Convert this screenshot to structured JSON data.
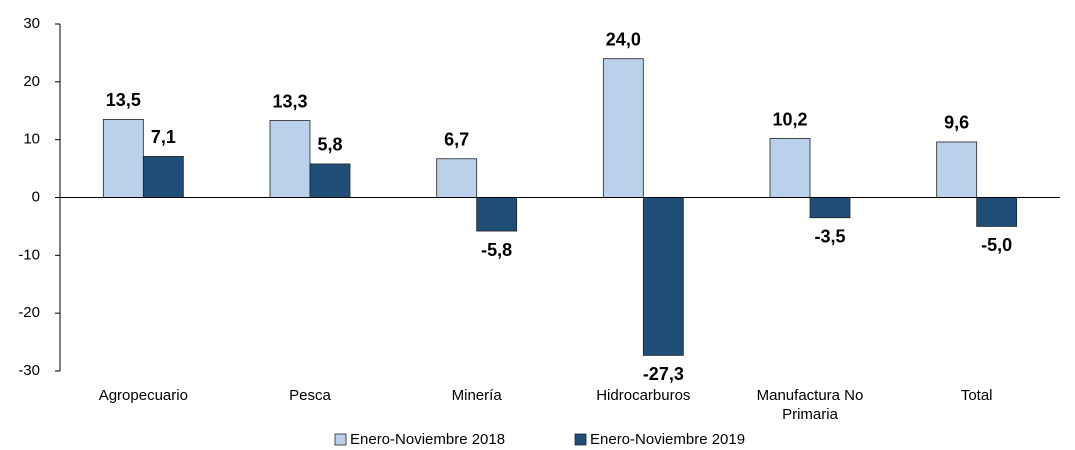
{
  "chart_data": {
    "type": "bar",
    "categories": [
      "Agropecuario",
      "Pesca",
      "Minería",
      "Hidrocarburos",
      "Manufactura No Primaria",
      "Total"
    ],
    "series": [
      {
        "name": "Enero-Noviembre 2018",
        "color": "#b9d1ea",
        "values": [
          13.5,
          13.3,
          6.7,
          24.0,
          10.2,
          9.6
        ],
        "value_labels": [
          "13,5",
          "13,3",
          "6,7",
          "24,0",
          "10,2",
          "9,6"
        ]
      },
      {
        "name": "Enero-Noviembre 2019",
        "color": "#1f4e79",
        "values": [
          7.1,
          5.8,
          -5.8,
          -27.3,
          -3.5,
          -5.0
        ],
        "value_labels": [
          "7,1",
          "5,8",
          "-5,8",
          "-27,3",
          "-3,5",
          "-5,0"
        ]
      }
    ],
    "ylim": [
      -30,
      30
    ],
    "yticks": [
      -30,
      -20,
      -10,
      0,
      10,
      20,
      30
    ],
    "legend": "bottom"
  }
}
